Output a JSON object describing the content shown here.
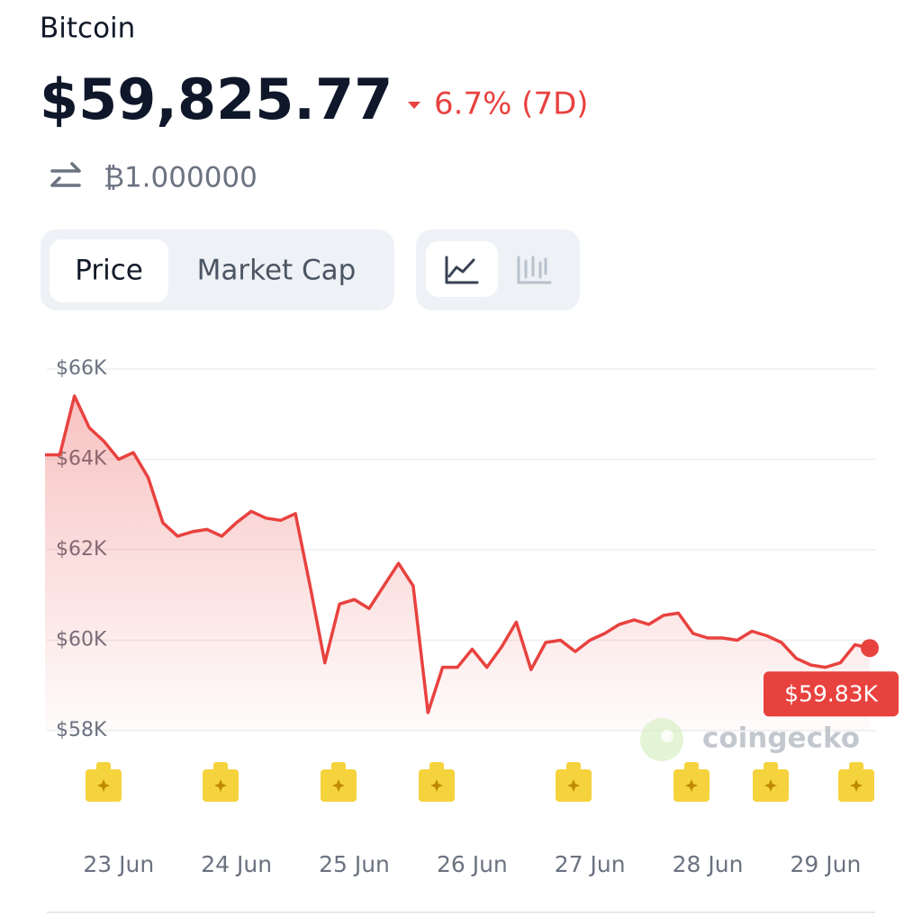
{
  "header": {
    "name": "Bitcoin",
    "price": "$59,825.77",
    "change": "6.7% (7D)",
    "btc_amount": "₿1.000000"
  },
  "tabs": {
    "metric": [
      "Price",
      "Market Cap"
    ]
  },
  "watermark": "coingecko",
  "chart_data": {
    "type": "line",
    "categories": [
      null,
      null,
      null,
      null,
      null,
      "23 Jun",
      null,
      null,
      null,
      null,
      null,
      null,
      null,
      "24 Jun",
      null,
      null,
      null,
      null,
      null,
      null,
      null,
      "25 Jun",
      null,
      null,
      null,
      null,
      null,
      null,
      null,
      "26 Jun",
      null,
      null,
      null,
      null,
      null,
      null,
      null,
      "27 Jun",
      null,
      null,
      null,
      null,
      null,
      null,
      null,
      "28 Jun",
      null,
      null,
      null,
      null,
      null,
      null,
      null,
      "29 Jun",
      null,
      null,
      null
    ],
    "series": [
      {
        "color": "#e8423f",
        "values": [
          64100,
          64100,
          65400,
          64700,
          64400,
          64000,
          64150,
          63600,
          62600,
          62300,
          62400,
          62450,
          62300,
          62600,
          62850,
          62700,
          62650,
          62800,
          61200,
          59500,
          60800,
          60900,
          60700,
          61200,
          61700,
          61200,
          58400,
          59400,
          59400,
          59800,
          59400,
          59850,
          60400,
          59350,
          59950,
          60000,
          59750,
          60000,
          60150,
          60350,
          60450,
          60350,
          60550,
          60600,
          60150,
          60050,
          60050,
          60000,
          60200,
          60100,
          59950,
          59600,
          59450,
          59400,
          59500,
          59900,
          59825.77
        ],
        "value_labels": [
          null,
          null,
          null,
          null,
          null,
          null,
          null,
          null,
          null,
          null,
          null,
          null,
          null,
          null,
          null,
          null,
          null,
          null,
          null,
          null,
          null,
          null,
          null,
          null,
          null,
          null,
          null,
          null,
          null,
          null,
          null,
          null,
          null,
          null,
          null,
          null,
          null,
          null,
          null,
          null,
          null,
          null,
          null,
          null,
          null,
          null,
          null,
          null,
          null,
          null,
          null,
          null,
          null,
          null,
          null,
          null,
          "$59.83K"
        ]
      }
    ],
    "ylim": [
      58000,
      66000
    ],
    "yticks": [
      {
        "value": 58000,
        "label": "$58K"
      },
      {
        "value": 60000,
        "label": "$60K"
      },
      {
        "value": 62000,
        "label": "$62K"
      },
      {
        "value": 64000,
        "label": "$64K"
      },
      {
        "value": 66000,
        "label": "$66K"
      }
    ],
    "grid": true
  }
}
